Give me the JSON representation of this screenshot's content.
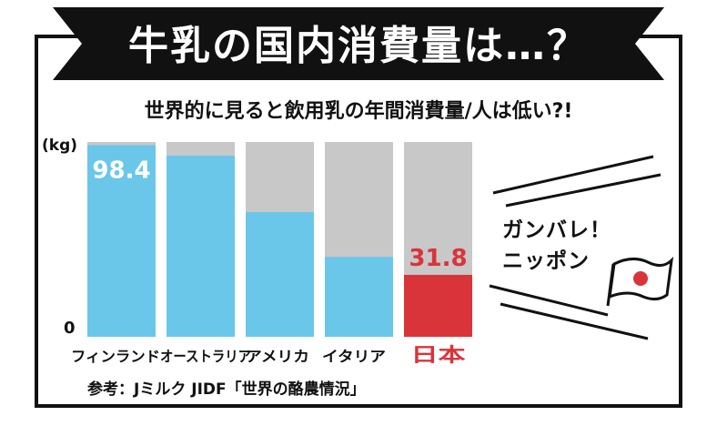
{
  "header": {
    "title": "牛乳の国内消費量は…？",
    "subtitle": "世界的に見ると飲用乳の年間消費量/人は低い?!"
  },
  "axis": {
    "unit": "(kg)",
    "zero": "0"
  },
  "source": "参考：Jミルク JIDF「世界の酪農情況」",
  "cheer": {
    "line1": "ガンバレ！",
    "line2": "ニッポン"
  },
  "colors": {
    "bar": "#6ac7ea",
    "highlight": "#d9343a",
    "track": "#c8c8c8",
    "ink": "#111111"
  },
  "chart_data": {
    "type": "bar",
    "title": "世界的に見ると飲用乳の年間消費量/人は低い?!",
    "ylabel": "(kg)",
    "ylim": [
      0,
      100
    ],
    "categories": [
      "フィンランド",
      "オーストラリア",
      "アメリカ",
      "イタリア",
      "日本"
    ],
    "values": [
      98.4,
      93,
      64,
      41,
      31.8
    ],
    "data_labels": [
      "98.4",
      "",
      "",
      "",
      "31.8"
    ],
    "highlight_index": 4,
    "grid": false,
    "legend": "none"
  }
}
